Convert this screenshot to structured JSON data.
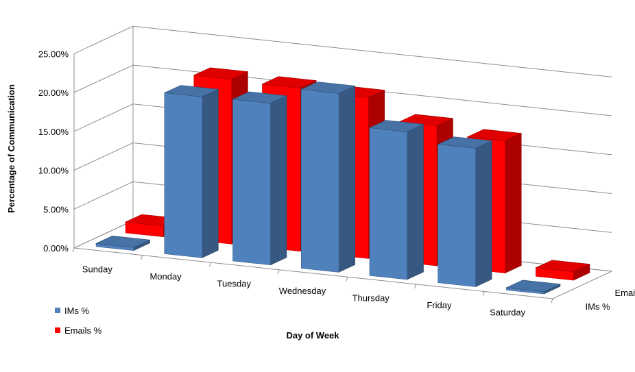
{
  "chart_data": {
    "type": "bar",
    "subtype": "3d-clustered-column",
    "title": "",
    "xlabel": "Day of Week",
    "ylabel": "Percentage of Communication",
    "categories": [
      "Sunday",
      "Monday",
      "Tuesday",
      "Wednesday",
      "Thursday",
      "Friday",
      "Saturday"
    ],
    "series": [
      {
        "name": "IMs %",
        "color": "#4F81BD",
        "values": [
          0.4,
          20.7,
          20.8,
          23.0,
          19.0,
          17.8,
          0.3
        ]
      },
      {
        "name": "Emails %",
        "color": "#FF0000",
        "values": [
          1.4,
          21.2,
          21.0,
          20.7,
          18.0,
          17.0,
          1.1
        ]
      }
    ],
    "depth_axis_labels": [
      "IMs %",
      "Emails %"
    ],
    "yticks": [
      "0.00%",
      "5.00%",
      "10.00%",
      "15.00%",
      "20.00%",
      "25.00%"
    ],
    "ylim": [
      0,
      25
    ],
    "grid": true,
    "legend_position": "bottom-left"
  }
}
